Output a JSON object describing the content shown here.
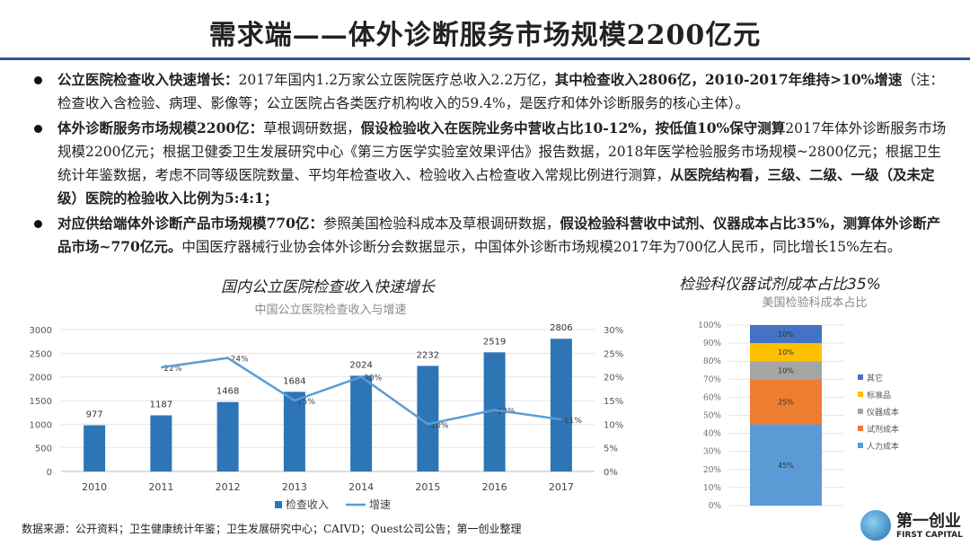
{
  "title": "需求端——体外诊断服务市场规模2200亿元",
  "bullets": [
    {
      "parts": [
        {
          "t": "公立医院检查收入快速增长：",
          "b": true
        },
        {
          "t": "2017年国内1.2万家公立医院医疗总收入2.2万亿，",
          "b": false
        },
        {
          "t": "其中检查收入2806亿，2010-2017年维持>10%增速",
          "b": true
        },
        {
          "t": "（注：检查收入含检验、病理、影像等；公立医院占各类医疗机构收入的59.4%，是医疗和体外诊断服务的核心主体）。",
          "b": false
        }
      ]
    },
    {
      "parts": [
        {
          "t": "体外诊断服务市场规模2200亿：",
          "b": true
        },
        {
          "t": "草根调研数据，",
          "b": false
        },
        {
          "t": "假设检验收入在医院业务中营收占比10-12%，按低值10%保守测算",
          "b": true
        },
        {
          "t": "2017年体外诊断服务市场规模2200亿元；根据卫健委卫生发展研究中心《第三方医学实验室效果评估》报告数据，2018年医学检验服务市场规模~2800亿元；根据卫生统计年鉴数据，考虑不同等级医院数量、平均年检查收入、检验收入占检查收入常规比例进行测算，",
          "b": false
        },
        {
          "t": "从医院结构看，三级、二级、一级（及未定级）医院的检验收入比例为5:4:1；",
          "b": true
        }
      ]
    },
    {
      "parts": [
        {
          "t": "对应供给端体外诊断产品市场规模770亿：",
          "b": true
        },
        {
          "t": "参照美国检验科成本及草根调研数据，",
          "b": false
        },
        {
          "t": "假设检验科营收中试剂、仪器成本占比35%，测算体外诊断产品市场~770亿元。",
          "b": true
        },
        {
          "t": "中国医疗器械行业协会体外诊断分会数据显示，中国体外诊断市场规模2017年为700亿人民币，同比增长15%左右。",
          "b": false
        }
      ]
    }
  ],
  "left_heading": "国内公立医院检查收入快速增长",
  "right_heading": "检验科仪器试剂成本占比35%",
  "source": "数据来源：公开资料；卫生健康统计年鉴；卫生发展研究中心；CAIVD；Quest公司公告；第一创业整理",
  "logo": {
    "cn": "第一创业",
    "en": "FIRST CAPITAL"
  },
  "colors": {
    "bar": "#2e75b6",
    "line": "#5b9bd5",
    "rule": "#2f5597"
  },
  "chart_data": [
    {
      "type": "bar",
      "title": "中国公立医院检查收入与增速",
      "categories": [
        "2010",
        "2011",
        "2012",
        "2013",
        "2014",
        "2015",
        "2016",
        "2017"
      ],
      "series": [
        {
          "name": "检查收入",
          "type": "bar",
          "axis": "left",
          "values": [
            977,
            1187,
            1468,
            1684,
            2024,
            2232,
            2519,
            2806
          ]
        },
        {
          "name": "增速",
          "type": "line",
          "axis": "right",
          "values": [
            null,
            22,
            24,
            15,
            20,
            10,
            13,
            11
          ]
        }
      ],
      "ylim": [
        0,
        3000
      ],
      "yticks": [
        "0",
        "500",
        "1000",
        "1500",
        "2000",
        "2500",
        "3000"
      ],
      "y2lim": [
        0,
        30
      ],
      "y2ticks": [
        "0%",
        "5%",
        "10%",
        "15%",
        "20%",
        "25%",
        "30%"
      ],
      "legend": "bottom"
    },
    {
      "type": "bar",
      "stacked": true,
      "title": "美国检验科成本占比",
      "categories": [
        ""
      ],
      "series": [
        {
          "name": "人力成本",
          "values": [
            45
          ],
          "color": "#5b9bd5"
        },
        {
          "name": "试剂成本",
          "values": [
            25
          ],
          "color": "#ed7d31"
        },
        {
          "name": "仪器成本",
          "values": [
            10
          ],
          "color": "#a5a5a5"
        },
        {
          "name": "标准品",
          "values": [
            10
          ],
          "color": "#ffc000"
        },
        {
          "name": "其它",
          "values": [
            10
          ],
          "color": "#4472c4"
        }
      ],
      "ylim": [
        0,
        100
      ],
      "yticks": [
        "0%",
        "10%",
        "20%",
        "30%",
        "40%",
        "50%",
        "60%",
        "70%",
        "80%",
        "90%",
        "100%"
      ],
      "legend": "right"
    }
  ]
}
